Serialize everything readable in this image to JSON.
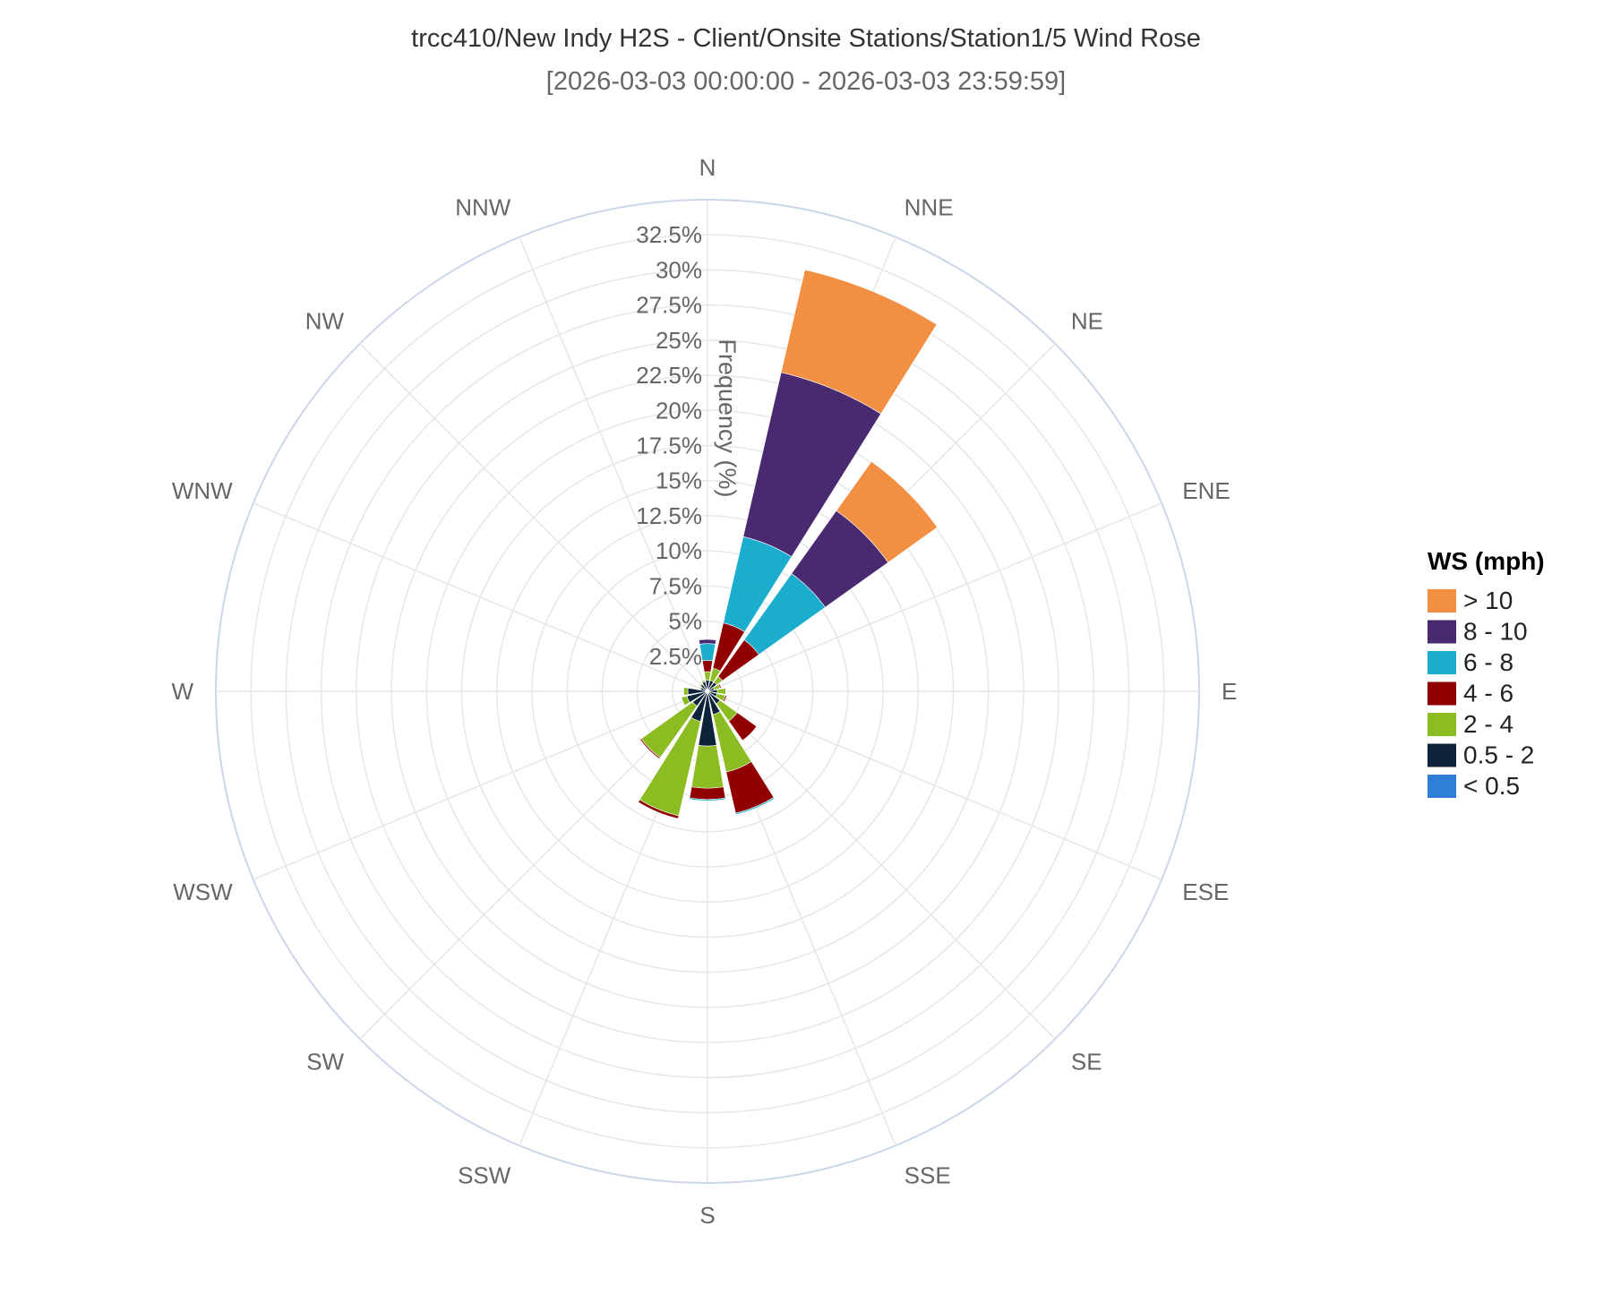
{
  "title": "trcc410/New Indy H2S - Client/Onsite Stations/Station1/5 Wind Rose",
  "subtitle": "[2026-03-03 00:00:00 - 2026-03-03 23:59:59]",
  "chart_data": {
    "type": "wind-rose (stacked polar bar)",
    "directions": [
      "N",
      "NNE",
      "NE",
      "ENE",
      "E",
      "ESE",
      "SE",
      "SSE",
      "S",
      "SSW",
      "SW",
      "WSW",
      "W",
      "WNW",
      "NW",
      "NNW"
    ],
    "radial_axis": {
      "title": "Frequency (%)",
      "range": [
        0,
        35
      ],
      "ticks": [
        2.5,
        5,
        7.5,
        10,
        12.5,
        15,
        17.5,
        20,
        22.5,
        25,
        27.5,
        30,
        32.5
      ],
      "tick_labels": [
        "2.5%",
        "5%",
        "7.5%",
        "10%",
        "12.5%",
        "15%",
        "17.5%",
        "20%",
        "22.5%",
        "25%",
        "27.5%",
        "30%",
        "32.5%"
      ]
    },
    "grid": true,
    "legend": {
      "title": "WS (mph)",
      "placement": "right"
    },
    "series": [
      {
        "name": "< 0.5",
        "color": "#2F7ED8",
        "values": [
          0.1,
          0.1,
          0.1,
          0.1,
          0.1,
          0.1,
          0.1,
          0.1,
          0.1,
          0.1,
          0.1,
          0.1,
          0.1,
          0.1,
          0.1,
          0.1
        ]
      },
      {
        "name": "0.5 - 2",
        "color": "#0D233A",
        "values": [
          0.7,
          0.7,
          0.7,
          0.4,
          0.6,
          0.6,
          1.0,
          1.6,
          3.8,
          2.1,
          1.2,
          1.4,
          1.3,
          0.4,
          0.5,
          0.6
        ]
      },
      {
        "name": "2 - 4",
        "color": "#8BBC21",
        "values": [
          0.6,
          0.9,
          0.5,
          0.4,
          0.6,
          0.6,
          1.5,
          4.2,
          3.0,
          6.9,
          4.5,
          0.4,
          0.3,
          0.1,
          0.1,
          0.1
        ]
      },
      {
        "name": "4 - 6",
        "color": "#910000",
        "values": [
          0.8,
          3.3,
          3.2,
          0.1,
          0.0,
          0.1,
          1.7,
          3.0,
          0.8,
          0.2,
          0.1,
          0.0,
          0.0,
          0.0,
          0.0,
          0.0
        ]
      },
      {
        "name": "6 - 8",
        "color": "#1AADCE",
        "values": [
          1.2,
          6.3,
          5.8,
          0.0,
          0.0,
          0.0,
          0.0,
          0.1,
          0.1,
          0.0,
          0.0,
          0.0,
          0.0,
          0.0,
          0.0,
          0.0
        ]
      },
      {
        "name": "8 - 10",
        "color": "#492970",
        "values": [
          0.3,
          12.0,
          5.5,
          0.0,
          0.0,
          0.0,
          0.0,
          0.0,
          0.0,
          0.0,
          0.0,
          0.0,
          0.0,
          0.0,
          0.0,
          0.0
        ]
      },
      {
        "name": "> 10",
        "color": "#F28F43",
        "values": [
          0.0,
          7.5,
          4.3,
          0.0,
          0.0,
          0.0,
          0.0,
          0.0,
          0.0,
          0.0,
          0.0,
          0.0,
          0.0,
          0.0,
          0.0,
          0.0
        ]
      }
    ],
    "legend_order": [
      "> 10",
      "8 - 10",
      "6 - 8",
      "4 - 6",
      "2 - 4",
      "0.5 - 2",
      "< 0.5"
    ]
  }
}
